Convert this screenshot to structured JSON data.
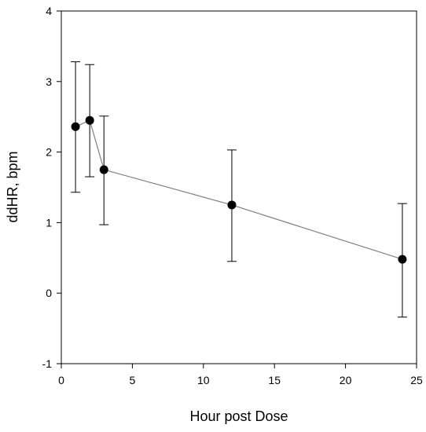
{
  "chart_data": {
    "type": "scatter",
    "xlabel": "Hour post Dose",
    "ylabel": "ddHR, bpm",
    "xlim": [
      0,
      25
    ],
    "ylim": [
      -1,
      4
    ],
    "xticks": [
      0,
      5,
      10,
      15,
      20,
      25
    ],
    "yticks": [
      -1,
      0,
      1,
      2,
      3,
      4
    ],
    "x_tick_labels": [
      "0",
      "5",
      "10",
      "15",
      "20",
      "25"
    ],
    "y_tick_labels": [
      "-1",
      "0",
      "1",
      "2",
      "3",
      "4"
    ],
    "grid": false,
    "series": [
      {
        "x": [
          1,
          2,
          3,
          12,
          24
        ],
        "y": [
          2.36,
          2.45,
          1.75,
          1.25,
          0.48
        ],
        "error_low": [
          1.43,
          1.65,
          0.97,
          0.45,
          -0.34
        ],
        "error_high": [
          3.28,
          3.24,
          2.51,
          2.03,
          1.27
        ],
        "connected": true,
        "line_color": "#808080",
        "marker_color": "#000000"
      }
    ]
  }
}
